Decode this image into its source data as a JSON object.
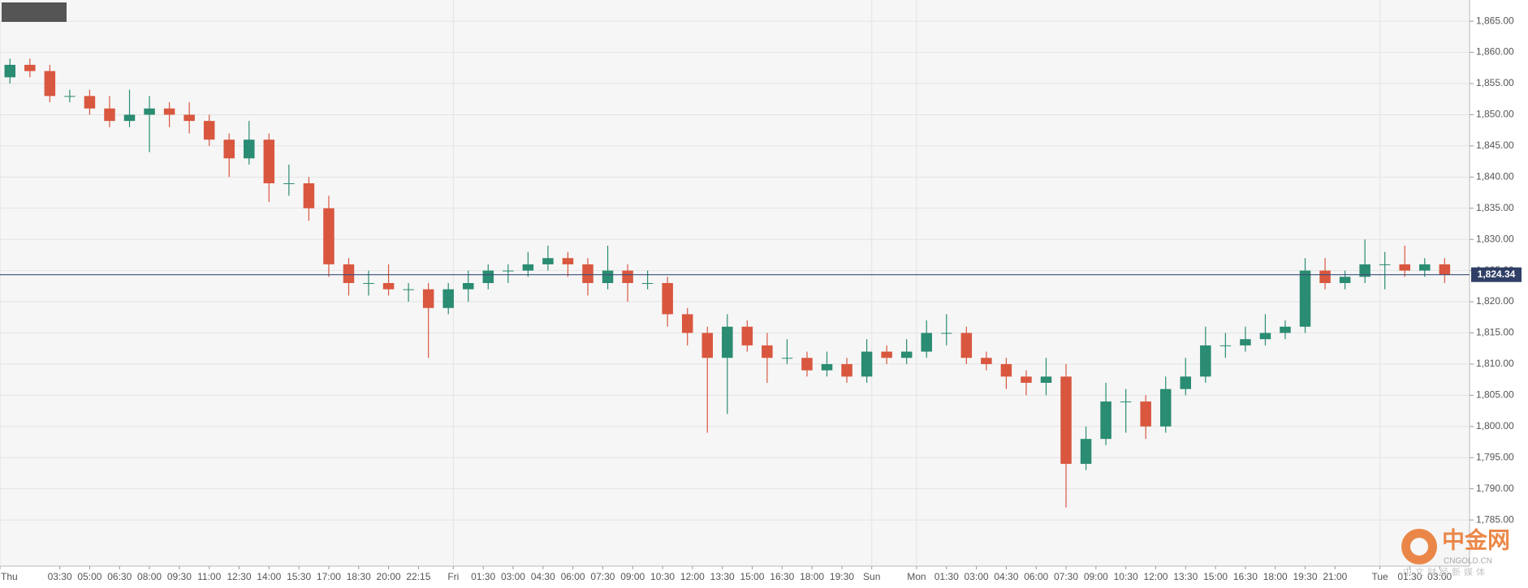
{
  "chart_data": {
    "type": "candlestick",
    "symbol": "XAU/USD",
    "up_color": "#2a8c72",
    "down_color": "#d9573f",
    "grid": true,
    "xlim": [
      0,
      295
    ],
    "ylim": [
      1777.6,
      1868.4
    ],
    "xticks": [
      {
        "value": 0,
        "label": "Thu"
      },
      {
        "value": 12,
        "label": "03:30"
      },
      {
        "value": 18,
        "label": "05:00"
      },
      {
        "value": 24,
        "label": "06:30"
      },
      {
        "value": 30,
        "label": "08:00"
      },
      {
        "value": 36,
        "label": "09:30"
      },
      {
        "value": 42,
        "label": "11:00"
      },
      {
        "value": 48,
        "label": "12:30"
      },
      {
        "value": 54,
        "label": "14:00"
      },
      {
        "value": 60,
        "label": "15:30"
      },
      {
        "value": 66,
        "label": "17:00"
      },
      {
        "value": 72,
        "label": "18:30"
      },
      {
        "value": 78,
        "label": "20:00"
      },
      {
        "value": 84,
        "label": "22:15"
      },
      {
        "value": 91,
        "label": "Fri"
      },
      {
        "value": 97,
        "label": "01:30"
      },
      {
        "value": 103,
        "label": "03:00"
      },
      {
        "value": 109,
        "label": "04:30"
      },
      {
        "value": 115,
        "label": "06:00"
      },
      {
        "value": 121,
        "label": "07:30"
      },
      {
        "value": 127,
        "label": "09:00"
      },
      {
        "value": 133,
        "label": "10:30"
      },
      {
        "value": 139,
        "label": "12:00"
      },
      {
        "value": 145,
        "label": "13:30"
      },
      {
        "value": 151,
        "label": "15:00"
      },
      {
        "value": 157,
        "label": "16:30"
      },
      {
        "value": 163,
        "label": "18:00"
      },
      {
        "value": 169,
        "label": "19:30"
      },
      {
        "value": 175,
        "label": "Sun"
      },
      {
        "value": 184,
        "label": "Mon"
      },
      {
        "value": 190,
        "label": "01:30"
      },
      {
        "value": 196,
        "label": "03:00"
      },
      {
        "value": 202,
        "label": "04:30"
      },
      {
        "value": 208,
        "label": "06:00"
      },
      {
        "value": 214,
        "label": "07:30"
      },
      {
        "value": 220,
        "label": "09:00"
      },
      {
        "value": 226,
        "label": "10:30"
      },
      {
        "value": 232,
        "label": "12:00"
      },
      {
        "value": 238,
        "label": "13:30"
      },
      {
        "value": 244,
        "label": "15:00"
      },
      {
        "value": 250,
        "label": "16:30"
      },
      {
        "value": 256,
        "label": "18:00"
      },
      {
        "value": 262,
        "label": "19:30"
      },
      {
        "value": 268,
        "label": "21:00"
      },
      {
        "value": 277,
        "label": "Tue"
      },
      {
        "value": 283,
        "label": "01:30"
      },
      {
        "value": 289,
        "label": "03:00"
      }
    ],
    "yticks": [
      {
        "value": 1785,
        "label": "1,785.00"
      },
      {
        "value": 1790,
        "label": "1,790.00"
      },
      {
        "value": 1795,
        "label": "1,795.00"
      },
      {
        "value": 1800,
        "label": "1,800.00"
      },
      {
        "value": 1805,
        "label": "1,805.00"
      },
      {
        "value": 1810,
        "label": "1,810.00"
      },
      {
        "value": 1815,
        "label": "1,815.00"
      },
      {
        "value": 1820,
        "label": "1,820.00"
      },
      {
        "value": 1825,
        "label": "1,825.00"
      },
      {
        "value": 1830,
        "label": "1,830.00"
      },
      {
        "value": 1835,
        "label": "1,835.00"
      },
      {
        "value": 1840,
        "label": "1,840.00"
      },
      {
        "value": 1845,
        "label": "1,845.00"
      },
      {
        "value": 1850,
        "label": "1,850.00"
      },
      {
        "value": 1855,
        "label": "1,855.00"
      },
      {
        "value": 1860,
        "label": "1,860.00"
      },
      {
        "value": 1865,
        "label": "1,865.00"
      }
    ],
    "price_line": {
      "value": 1824.34,
      "label": "1,824.34"
    },
    "x": [
      2,
      6,
      10,
      14,
      18,
      22,
      26,
      30,
      34,
      38,
      42,
      46,
      50,
      54,
      58,
      62,
      66,
      70,
      74,
      78,
      82,
      86,
      90,
      94,
      98,
      102,
      106,
      110,
      114,
      118,
      122,
      126,
      130,
      134,
      138,
      142,
      146,
      150,
      154,
      158,
      162,
      166,
      170,
      174,
      178,
      182,
      186,
      190,
      194,
      198,
      202,
      206,
      210,
      214,
      218,
      222,
      226,
      230,
      234,
      238,
      242,
      246,
      250,
      254,
      258,
      262,
      266,
      270,
      274,
      278,
      282,
      286,
      290
    ],
    "ohlc": [
      [
        1856,
        1859,
        1855,
        1858
      ],
      [
        1858,
        1859,
        1856,
        1857
      ],
      [
        1857,
        1858,
        1852,
        1853
      ],
      [
        1853,
        1854,
        1852,
        1853
      ],
      [
        1853,
        1854,
        1850,
        1851
      ],
      [
        1851,
        1853,
        1848,
        1849
      ],
      [
        1849,
        1854,
        1848,
        1850
      ],
      [
        1850,
        1853,
        1844,
        1851
      ],
      [
        1851,
        1852,
        1848,
        1850
      ],
      [
        1850,
        1852,
        1847,
        1849
      ],
      [
        1849,
        1850,
        1845,
        1846
      ],
      [
        1846,
        1847,
        1840,
        1843
      ],
      [
        1843,
        1849,
        1842,
        1846
      ],
      [
        1846,
        1847,
        1836,
        1839
      ],
      [
        1839,
        1842,
        1837,
        1839
      ],
      [
        1839,
        1840,
        1833,
        1835
      ],
      [
        1835,
        1837,
        1824,
        1826
      ],
      [
        1826,
        1827,
        1821,
        1823
      ],
      [
        1823,
        1825,
        1821,
        1823
      ],
      [
        1823,
        1826,
        1821,
        1822
      ],
      [
        1822,
        1823,
        1820,
        1822
      ],
      [
        1822,
        1823,
        1811,
        1819
      ],
      [
        1819,
        1823,
        1818,
        1822
      ],
      [
        1822,
        1825,
        1820,
        1823
      ],
      [
        1823,
        1826,
        1822,
        1825
      ],
      [
        1825,
        1826,
        1823,
        1825
      ],
      [
        1825,
        1828,
        1824,
        1826
      ],
      [
        1826,
        1829,
        1825,
        1827
      ],
      [
        1827,
        1828,
        1824,
        1826
      ],
      [
        1826,
        1827,
        1821,
        1823
      ],
      [
        1823,
        1829,
        1822,
        1825
      ],
      [
        1825,
        1826,
        1820,
        1823
      ],
      [
        1823,
        1825,
        1822,
        1823
      ],
      [
        1823,
        1824,
        1816,
        1818
      ],
      [
        1818,
        1819,
        1813,
        1815
      ],
      [
        1815,
        1816,
        1799,
        1811
      ],
      [
        1811,
        1818,
        1802,
        1816
      ],
      [
        1816,
        1817,
        1812,
        1813
      ],
      [
        1813,
        1815,
        1807,
        1811
      ],
      [
        1811,
        1814,
        1810,
        1811
      ],
      [
        1811,
        1812,
        1808,
        1809
      ],
      [
        1809,
        1812,
        1808,
        1810
      ],
      [
        1810,
        1811,
        1807,
        1808
      ],
      [
        1808,
        1814,
        1807,
        1812
      ],
      [
        1812,
        1813,
        1810,
        1811
      ],
      [
        1811,
        1814,
        1810,
        1812
      ],
      [
        1812,
        1817,
        1811,
        1815
      ],
      [
        1815,
        1818,
        1813,
        1815
      ],
      [
        1815,
        1816,
        1810,
        1811
      ],
      [
        1811,
        1812,
        1809,
        1810
      ],
      [
        1810,
        1811,
        1806,
        1808
      ],
      [
        1808,
        1809,
        1805,
        1807
      ],
      [
        1807,
        1811,
        1805,
        1808
      ],
      [
        1808,
        1810,
        1787,
        1794
      ],
      [
        1794,
        1800,
        1793,
        1798
      ],
      [
        1798,
        1807,
        1797,
        1804
      ],
      [
        1804,
        1806,
        1799,
        1804
      ],
      [
        1804,
        1805,
        1798,
        1800
      ],
      [
        1800,
        1808,
        1799,
        1806
      ],
      [
        1806,
        1811,
        1805,
        1808
      ],
      [
        1808,
        1816,
        1807,
        1813
      ],
      [
        1813,
        1815,
        1811,
        1813
      ],
      [
        1813,
        1816,
        1812,
        1814
      ],
      [
        1814,
        1818,
        1813,
        1815
      ],
      [
        1815,
        1817,
        1814,
        1816
      ],
      [
        1816,
        1827,
        1815,
        1825
      ],
      [
        1825,
        1827,
        1822,
        1823
      ],
      [
        1823,
        1825,
        1822,
        1824
      ],
      [
        1824,
        1830,
        1823,
        1826
      ],
      [
        1826,
        1828,
        1822,
        1826
      ],
      [
        1826,
        1829,
        1824,
        1825
      ],
      [
        1825,
        1827,
        1824,
        1826
      ],
      [
        1826,
        1827,
        1823,
        1824.34
      ]
    ]
  },
  "watermark": {
    "name": "中金网",
    "site": "CNGOLD.CN",
    "tagline": "中文财经新媒体"
  }
}
